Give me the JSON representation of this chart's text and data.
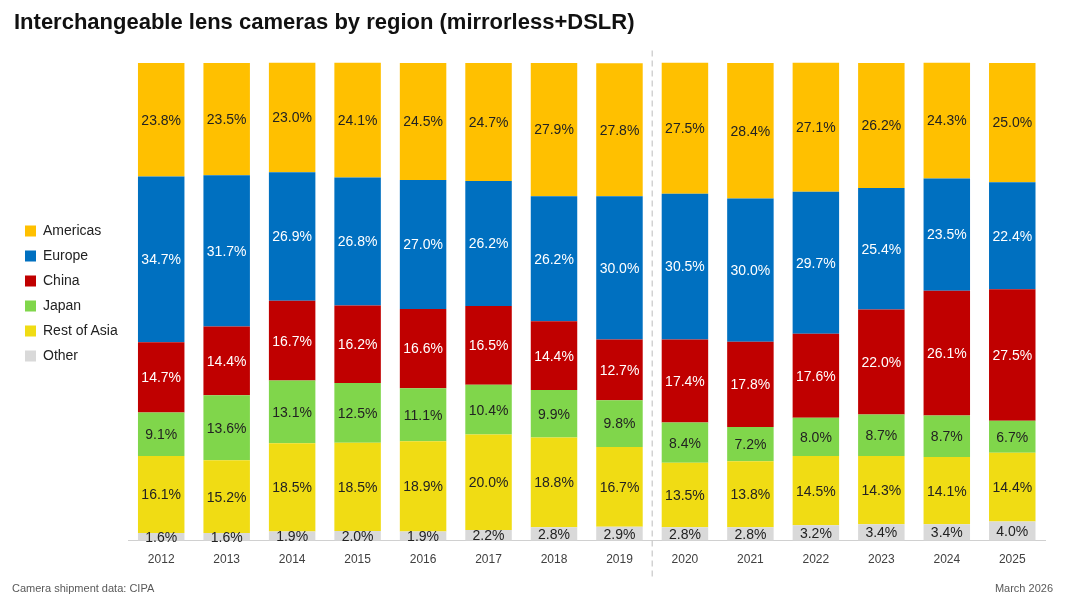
{
  "chart_data": {
    "type": "bar",
    "stacked": true,
    "title": "Interchangeable lens cameras by region (mirrorless+DSLR)",
    "categories": [
      "2012",
      "2013",
      "2014",
      "2015",
      "2016",
      "2017",
      "2018",
      "2019",
      "2020",
      "2021",
      "2022",
      "2023",
      "2024",
      "2025"
    ],
    "series": [
      {
        "name": "Other",
        "color": "#d9d9d9",
        "values": [
          1.6,
          1.6,
          1.9,
          2.0,
          1.9,
          2.2,
          2.8,
          2.9,
          2.8,
          2.8,
          3.2,
          3.4,
          3.4,
          4.0
        ],
        "value_labels": [
          "1.6%",
          "1.6%",
          "1.9%",
          "2.0%",
          "1.9%",
          "2.2%",
          "2.8%",
          "2.9%",
          "2.8%",
          "2.8%",
          "3.2%",
          "3.4%",
          "3.4%",
          "4.0%"
        ]
      },
      {
        "name": "Rest of Asia",
        "color": "#f0dc14",
        "values": [
          16.1,
          15.2,
          18.5,
          18.5,
          18.9,
          20.0,
          18.8,
          16.7,
          13.5,
          13.8,
          14.5,
          14.3,
          14.1,
          14.4
        ],
        "value_labels": [
          "16.1%",
          "15.2%",
          "18.5%",
          "18.5%",
          "18.9%",
          "20.0%",
          "18.8%",
          "16.7%",
          "13.5%",
          "13.8%",
          "14.5%",
          "14.3%",
          "14.1%",
          "14.4%"
        ]
      },
      {
        "name": "Japan",
        "color": "#80d64b",
        "values": [
          9.1,
          13.6,
          13.1,
          12.5,
          11.1,
          10.4,
          9.9,
          9.8,
          8.4,
          7.2,
          8.0,
          8.7,
          8.7,
          6.7
        ],
        "value_labels": [
          "9.1%",
          "13.6%",
          "13.1%",
          "12.5%",
          "11.1%",
          "10.4%",
          "9.9%",
          "9.8%",
          "8.4%",
          "7.2%",
          "8.0%",
          "8.7%",
          "8.7%",
          "6.7%"
        ]
      },
      {
        "name": "China",
        "color": "#c00000",
        "values": [
          14.7,
          14.4,
          16.7,
          16.2,
          16.6,
          16.5,
          14.4,
          12.7,
          17.4,
          17.8,
          17.6,
          22.0,
          26.1,
          27.5
        ],
        "value_labels": [
          "14.7%",
          "14.4%",
          "16.7%",
          "16.2%",
          "16.6%",
          "16.5%",
          "14.4%",
          "12.7%",
          "17.4%",
          "17.8%",
          "17.6%",
          "22.0%",
          "26.1%",
          "27.5%"
        ]
      },
      {
        "name": "Europe",
        "color": "#0070c0",
        "values": [
          34.7,
          31.7,
          26.9,
          26.8,
          27.0,
          26.2,
          26.2,
          30.0,
          30.5,
          30.0,
          29.7,
          25.4,
          23.5,
          22.4
        ],
        "value_labels": [
          "34.7%",
          "31.7%",
          "26.9%",
          "26.8%",
          "27.0%",
          "26.2%",
          "26.2%",
          "30.0%",
          "30.5%",
          "30.0%",
          "29.7%",
          "25.4%",
          "23.5%",
          "22.4%"
        ]
      },
      {
        "name": "Americas",
        "color": "#ffc000",
        "values": [
          23.8,
          23.5,
          23.0,
          24.1,
          24.5,
          24.7,
          27.9,
          27.8,
          27.5,
          28.4,
          27.1,
          26.2,
          24.3,
          25.0
        ],
        "value_labels": [
          "23.8%",
          "23.5%",
          "23.0%",
          "24.1%",
          "24.5%",
          "24.7%",
          "27.9%",
          "27.8%",
          "27.5%",
          "28.4%",
          "27.1%",
          "26.2%",
          "24.3%",
          "25.0%"
        ]
      }
    ],
    "legend": "left",
    "tick_labels": "x",
    "grid": false,
    "annotations": [
      "Camera shipment data: CIPA",
      "March 2026"
    ]
  }
}
